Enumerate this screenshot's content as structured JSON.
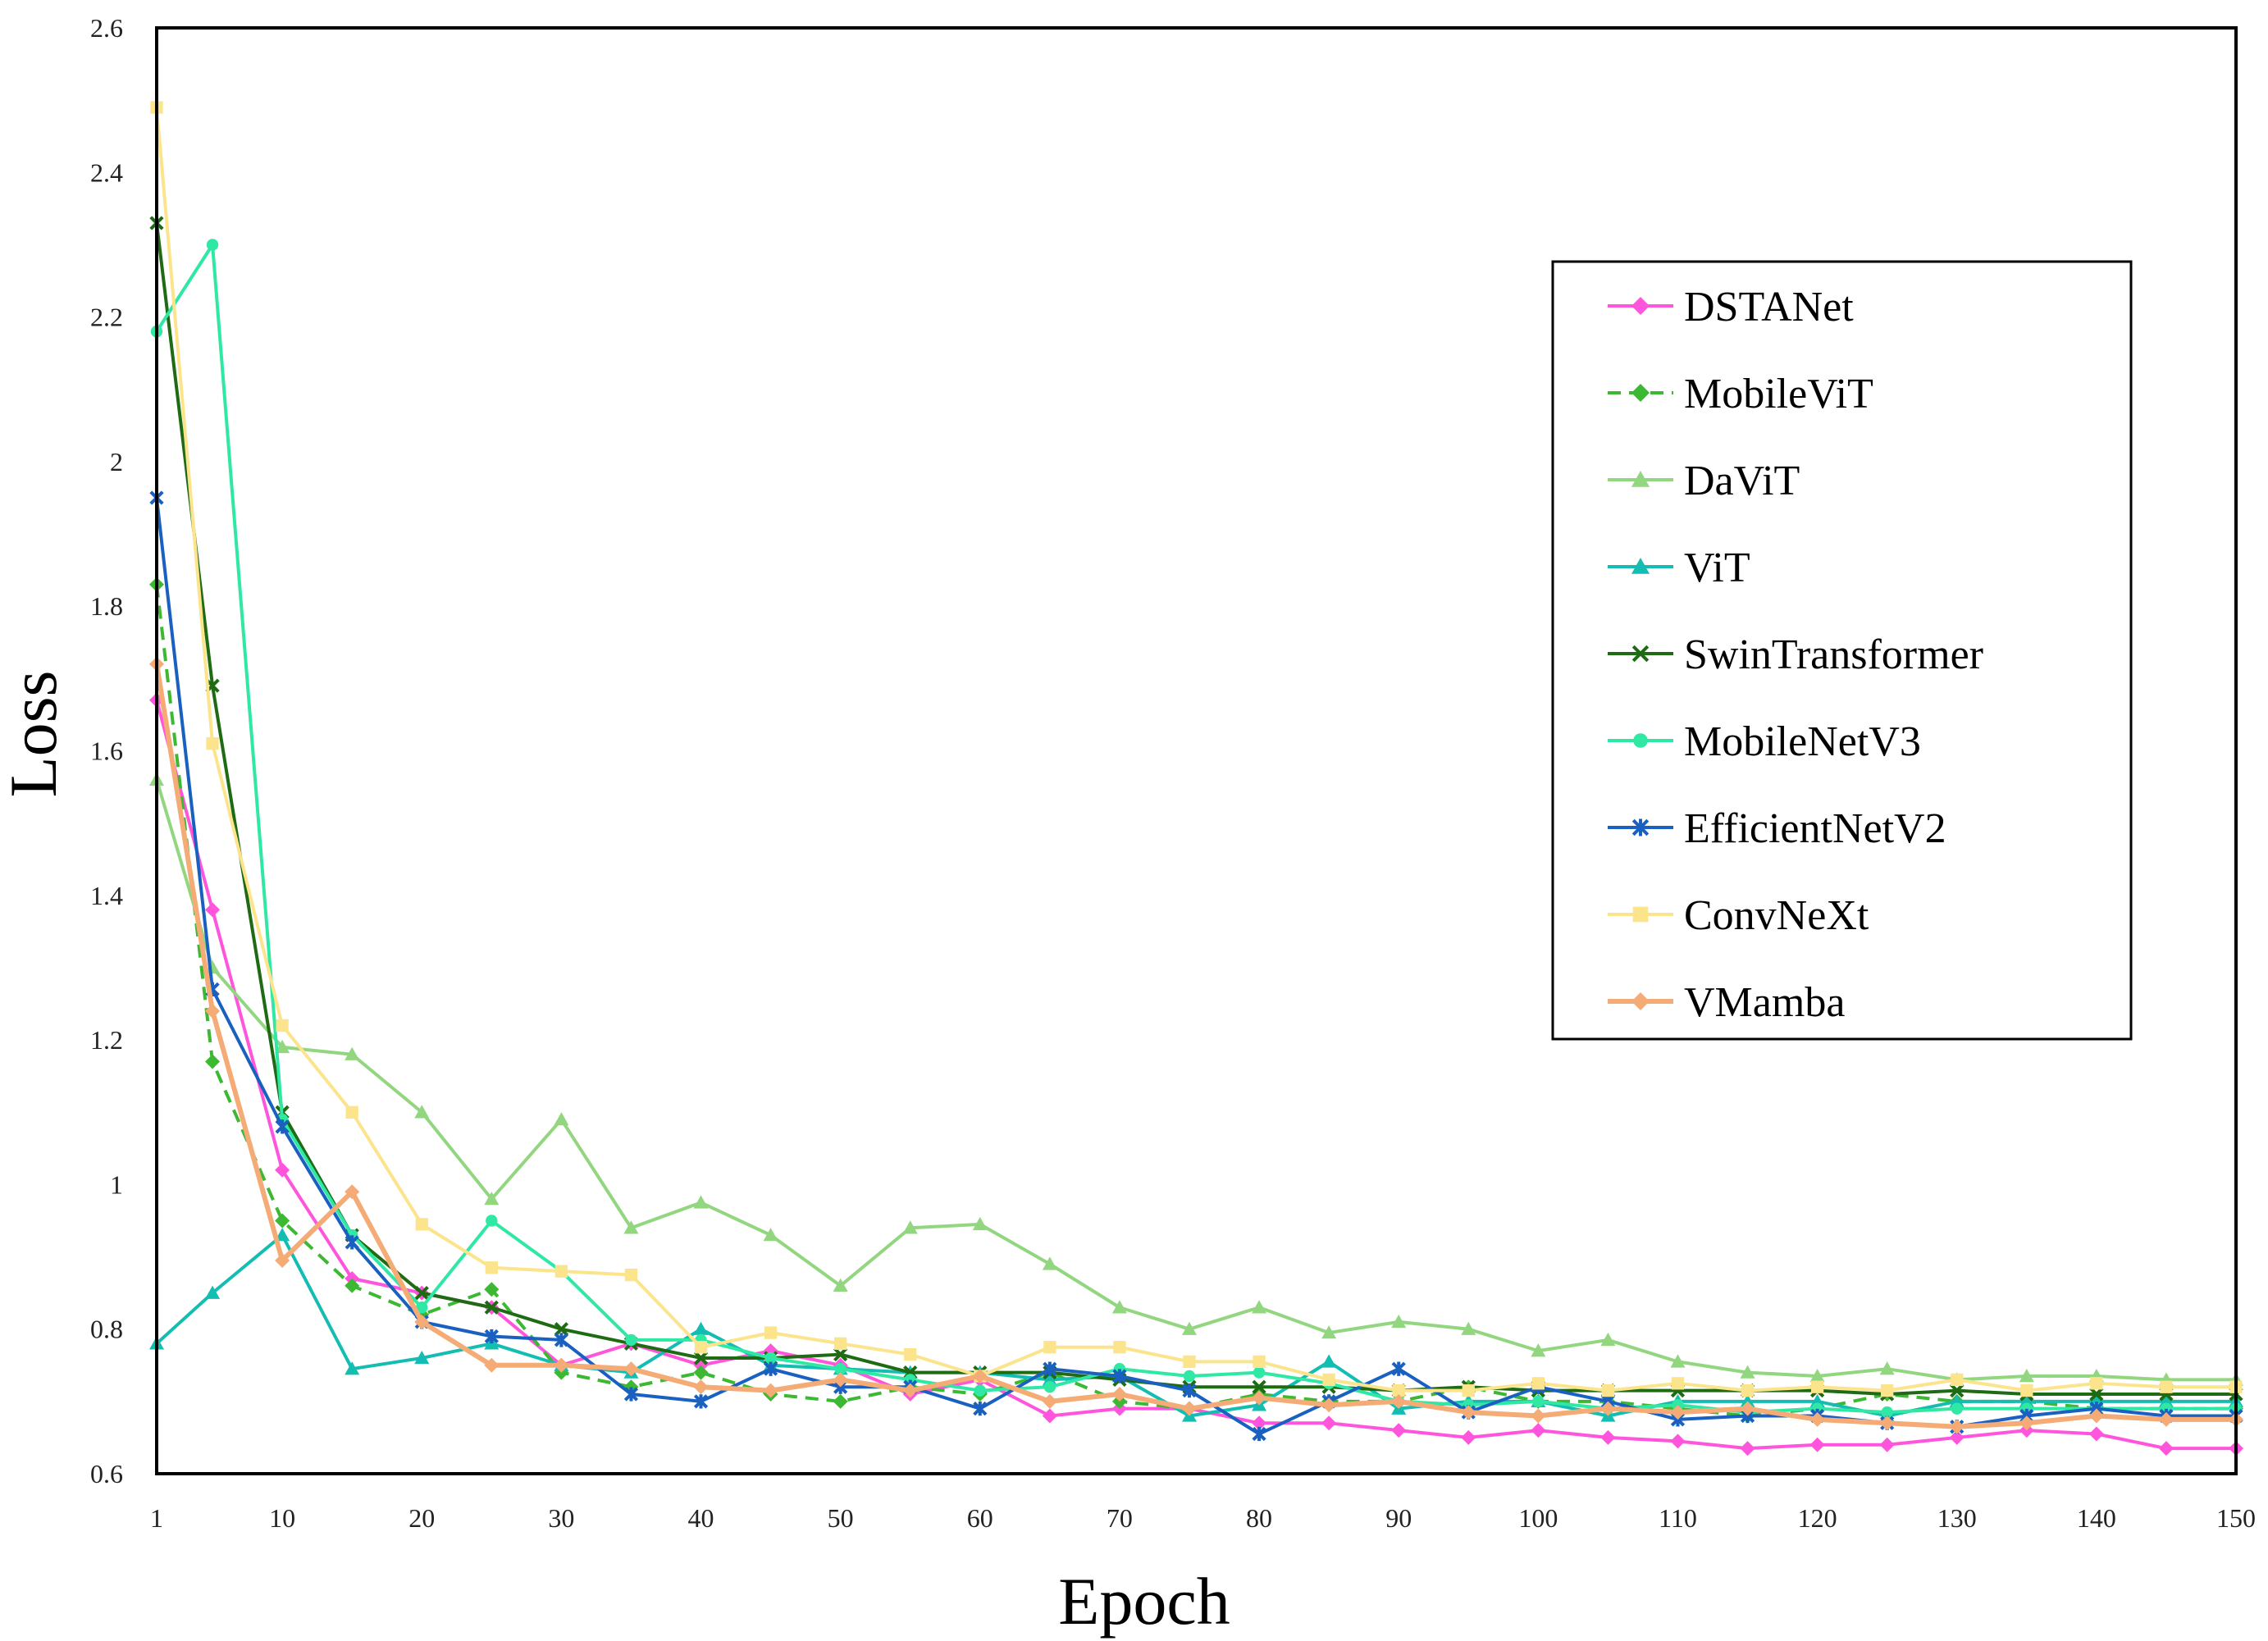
{
  "chart_data": {
    "type": "line",
    "title": "",
    "xlabel": "Epoch",
    "ylabel": "Loss",
    "xlim": [
      1,
      150
    ],
    "ylim": [
      0.6,
      2.6
    ],
    "grid": false,
    "legend_position": "top-right",
    "xticks": [
      1,
      10,
      20,
      30,
      40,
      50,
      60,
      70,
      80,
      90,
      100,
      110,
      120,
      130,
      140,
      150
    ],
    "xtick_labels": [
      "1",
      "10",
      "20",
      "30",
      "40",
      "50",
      "60",
      "70",
      "80",
      "90",
      "100",
      "110",
      "120",
      "130",
      "140",
      "150"
    ],
    "yticks": [
      0.6,
      0.8,
      1.0,
      1.2,
      1.4,
      1.6,
      1.8,
      2.0,
      2.2,
      2.4,
      2.6
    ],
    "ytick_labels": [
      "0.6",
      "0.8",
      "1",
      "1.2",
      "1.4",
      "1.6",
      "1.8",
      "2",
      "2.2",
      "2.4",
      "2.6"
    ],
    "x": [
      1,
      5,
      10,
      15,
      20,
      25,
      30,
      35,
      40,
      45,
      50,
      55,
      60,
      65,
      70,
      75,
      80,
      85,
      90,
      95,
      100,
      105,
      110,
      115,
      120,
      125,
      130,
      135,
      140,
      145,
      150
    ],
    "series": [
      {
        "name": "DSTANet",
        "color": "#ff55dd",
        "marker": "diamond",
        "dash": false,
        "values": [
          1.67,
          1.38,
          1.02,
          0.87,
          0.85,
          0.83,
          0.75,
          0.78,
          0.75,
          0.77,
          0.75,
          0.71,
          0.73,
          0.68,
          0.69,
          0.69,
          0.67,
          0.67,
          0.66,
          0.65,
          0.66,
          0.65,
          0.645,
          0.635,
          0.64,
          0.64,
          0.65,
          0.66,
          0.655,
          0.635,
          0.635
        ]
      },
      {
        "name": "MobileViT",
        "color": "#3cb832",
        "marker": "diamond",
        "dash": true,
        "values": [
          1.83,
          1.17,
          0.95,
          0.86,
          0.82,
          0.855,
          0.74,
          0.72,
          0.74,
          0.71,
          0.7,
          0.72,
          0.71,
          0.74,
          0.7,
          0.69,
          0.71,
          0.7,
          0.7,
          0.72,
          0.7,
          0.7,
          0.69,
          0.68,
          0.69,
          0.71,
          0.7,
          0.7,
          0.69,
          0.69,
          0.69
        ]
      },
      {
        "name": "DaViT",
        "color": "#92d680",
        "marker": "triangle",
        "dash": false,
        "values": [
          1.56,
          1.3,
          1.19,
          1.18,
          1.1,
          0.98,
          1.09,
          0.94,
          0.975,
          0.93,
          0.86,
          0.94,
          0.945,
          0.89,
          0.83,
          0.8,
          0.83,
          0.795,
          0.81,
          0.8,
          0.77,
          0.785,
          0.755,
          0.74,
          0.735,
          0.745,
          0.73,
          0.735,
          0.735,
          0.73,
          0.73
        ]
      },
      {
        "name": "ViT",
        "color": "#14bdb2",
        "marker": "triangle",
        "dash": false,
        "values": [
          0.78,
          0.85,
          0.93,
          0.745,
          0.76,
          0.78,
          0.75,
          0.74,
          0.8,
          0.75,
          0.745,
          0.74,
          0.74,
          0.73,
          0.735,
          0.68,
          0.695,
          0.755,
          0.69,
          0.7,
          0.7,
          0.68,
          0.7,
          0.7,
          0.7,
          0.68,
          0.7,
          0.7,
          0.7,
          0.7,
          0.7
        ]
      },
      {
        "name": "SwinTransformer",
        "color": "#1e6b14",
        "marker": "x",
        "dash": false,
        "values": [
          2.33,
          1.69,
          1.1,
          0.93,
          0.85,
          0.83,
          0.8,
          0.78,
          0.76,
          0.76,
          0.765,
          0.74,
          0.74,
          0.74,
          0.73,
          0.72,
          0.72,
          0.72,
          0.715,
          0.72,
          0.715,
          0.715,
          0.715,
          0.715,
          0.715,
          0.71,
          0.715,
          0.71,
          0.71,
          0.71,
          0.71
        ]
      },
      {
        "name": "MobileNetV3",
        "color": "#2ee8a4",
        "marker": "circle",
        "dash": false,
        "values": [
          2.18,
          2.3,
          1.09,
          0.93,
          0.83,
          0.95,
          0.88,
          0.785,
          0.785,
          0.76,
          0.745,
          0.73,
          0.715,
          0.72,
          0.745,
          0.735,
          0.74,
          0.725,
          0.7,
          0.695,
          0.7,
          0.69,
          0.695,
          0.685,
          0.69,
          0.685,
          0.69,
          0.69,
          0.69,
          0.69,
          0.69
        ]
      },
      {
        "name": "EfficientNetV2",
        "color": "#1a60c0",
        "marker": "star",
        "dash": false,
        "values": [
          1.95,
          1.27,
          1.08,
          0.92,
          0.81,
          0.79,
          0.785,
          0.71,
          0.7,
          0.745,
          0.72,
          0.72,
          0.69,
          0.745,
          0.735,
          0.715,
          0.655,
          0.7,
          0.745,
          0.685,
          0.72,
          0.7,
          0.675,
          0.68,
          0.68,
          0.67,
          0.665,
          0.68,
          0.69,
          0.68,
          0.68
        ]
      },
      {
        "name": "ConvNeXt",
        "color": "#fbe48c",
        "marker": "square",
        "dash": false,
        "values": [
          2.49,
          1.61,
          1.22,
          1.1,
          0.945,
          0.885,
          0.88,
          0.875,
          0.775,
          0.795,
          0.78,
          0.765,
          0.735,
          0.775,
          0.775,
          0.755,
          0.755,
          0.73,
          0.715,
          0.715,
          0.725,
          0.715,
          0.725,
          0.715,
          0.72,
          0.715,
          0.73,
          0.715,
          0.725,
          0.72,
          0.72
        ]
      },
      {
        "name": "VMamba",
        "color": "#f5ab75",
        "marker": "diamond",
        "dash": false,
        "values": [
          1.72,
          1.24,
          0.895,
          0.99,
          0.81,
          0.75,
          0.75,
          0.745,
          0.72,
          0.715,
          0.73,
          0.715,
          0.735,
          0.7,
          0.71,
          0.69,
          0.705,
          0.695,
          0.7,
          0.685,
          0.68,
          0.69,
          0.685,
          0.69,
          0.675,
          0.67,
          0.665,
          0.67,
          0.68,
          0.675,
          0.675
        ]
      }
    ]
  }
}
